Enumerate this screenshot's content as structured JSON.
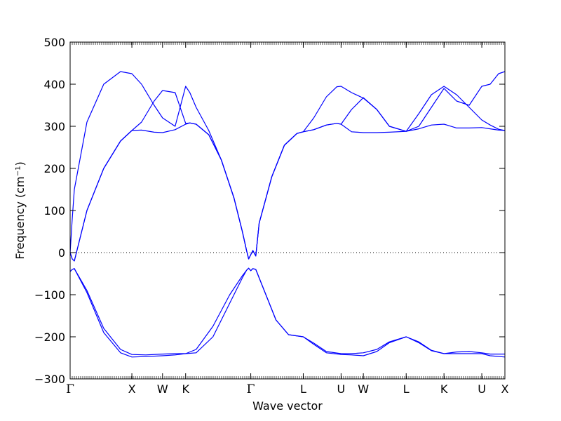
{
  "chart_data": {
    "type": "line",
    "title": "",
    "xlabel": "Wave vector",
    "ylabel": "Frequency (cm⁻¹)",
    "ylim": [
      -300,
      500
    ],
    "yticks": [
      -300,
      -200,
      -100,
      0,
      100,
      200,
      300,
      400,
      500
    ],
    "ytick_labels": [
      "−300",
      "−200",
      "−100",
      "0",
      "100",
      "200",
      "300",
      "400",
      "500"
    ],
    "xlim": [
      0,
      10.35
    ],
    "kpoints": [
      {
        "label": "Γ",
        "x": 0
      },
      {
        "label": "X",
        "x": 1.47
      },
      {
        "label": "W",
        "x": 2.2
      },
      {
        "label": "K",
        "x": 2.75
      },
      {
        "label": "Γ",
        "x": 4.3
      },
      {
        "label": "L",
        "x": 5.55
      },
      {
        "label": "U",
        "x": 6.45
      },
      {
        "label": "W",
        "x": 6.98
      },
      {
        "label": "L",
        "x": 8.0
      },
      {
        "label": "K",
        "x": 8.9
      },
      {
        "label": "U",
        "x": 9.8
      },
      {
        "label": "X",
        "x": 10.35
      }
    ],
    "zero_line": {
      "y": 0,
      "style": "dotted"
    },
    "line_color": "#0000ff",
    "series": [
      {
        "x": [
          0,
          0.05,
          0.1,
          0.4,
          0.8,
          1.2,
          1.47,
          1.7,
          2.0,
          2.2,
          2.5,
          2.75,
          2.85,
          3.0,
          3.3,
          3.6,
          3.9,
          4.1,
          4.2,
          4.25,
          4.3,
          4.35,
          4.42,
          4.5,
          4.8,
          5.1,
          5.4,
          5.55,
          5.8,
          6.1,
          6.35,
          6.45,
          6.7,
          6.98,
          7.3,
          7.6,
          8.0,
          8.3,
          8.6,
          8.9,
          9.2,
          9.5,
          9.8,
          10.0,
          10.2,
          10.35
        ],
        "values": [
          0,
          -15,
          -20,
          100,
          200,
          265,
          290,
          291,
          286,
          285,
          292,
          305,
          308,
          305,
          280,
          220,
          130,
          50,
          5,
          -15,
          -5,
          5,
          -8,
          70,
          180,
          255,
          283,
          287,
          292,
          303,
          307,
          305,
          287,
          285,
          285,
          286,
          288,
          294,
          303,
          305,
          296,
          296,
          297,
          294,
          291,
          290
        ]
      },
      {
        "x": [
          0,
          0.05,
          0.1,
          0.4,
          0.8,
          1.2,
          1.47,
          1.7,
          2.0,
          2.2,
          2.5,
          2.75,
          2.85,
          3.0,
          3.3,
          3.6,
          3.9,
          4.1,
          4.2,
          4.25,
          4.3,
          4.35,
          4.42,
          4.5,
          4.8,
          5.1,
          5.4,
          5.55,
          5.8,
          6.1,
          6.35,
          6.45,
          6.7,
          6.98,
          7.3,
          7.6,
          8.0,
          8.3,
          8.6,
          8.9,
          9.2,
          9.5,
          9.8,
          10.0,
          10.2,
          10.35
        ],
        "values": [
          0,
          -15,
          -20,
          100,
          200,
          265,
          290,
          310,
          360,
          385,
          380,
          307,
          308,
          305,
          280,
          220,
          130,
          50,
          5,
          -15,
          -5,
          5,
          -8,
          70,
          180,
          255,
          283,
          287,
          292,
          303,
          307,
          305,
          340,
          368,
          340,
          300,
          288,
          330,
          375,
          395,
          375,
          345,
          315,
          303,
          293,
          290
        ]
      },
      {
        "x": [
          0,
          0.05,
          0.1,
          0.4,
          0.8,
          1.2,
          1.47,
          1.7,
          2.0,
          2.2,
          2.5,
          2.75,
          2.85,
          3.0,
          3.3,
          3.6,
          3.9,
          4.1,
          4.2,
          4.25,
          4.3,
          4.35,
          4.42,
          4.5,
          4.8,
          5.1,
          5.4,
          5.55,
          5.8,
          6.1,
          6.35,
          6.45,
          6.7,
          6.98,
          7.3,
          7.6,
          8.0,
          8.3,
          8.6,
          8.9,
          9.2,
          9.5,
          9.8,
          10.0,
          10.2,
          10.35
        ],
        "values": [
          0,
          80,
          150,
          310,
          400,
          430,
          425,
          400,
          350,
          320,
          300,
          395,
          380,
          345,
          290,
          220,
          130,
          50,
          5,
          -15,
          -5,
          5,
          -8,
          70,
          180,
          255,
          283,
          287,
          320,
          370,
          394,
          395,
          380,
          367,
          340,
          300,
          288,
          300,
          345,
          390,
          360,
          350,
          395,
          400,
          425,
          430
        ]
      },
      {
        "x": [
          0,
          0.05,
          0.1,
          0.4,
          0.8,
          1.2,
          1.47,
          1.8,
          2.2,
          2.5,
          2.75,
          3.0,
          3.4,
          3.8,
          4.1,
          4.2,
          4.25,
          4.3,
          4.35,
          4.42,
          4.6,
          4.9,
          5.2,
          5.55,
          5.8,
          6.1,
          6.45,
          6.7,
          6.98,
          7.3,
          7.6,
          8.0,
          8.3,
          8.6,
          8.9,
          9.2,
          9.5,
          9.8,
          10.0,
          10.35
        ],
        "values": [
          -45,
          -40,
          -38,
          -90,
          -180,
          -230,
          -242,
          -243,
          -241,
          -240,
          -240,
          -230,
          -175,
          -100,
          -55,
          -42,
          -37,
          -43,
          -38,
          -40,
          -85,
          -160,
          -195,
          -200,
          -215,
          -235,
          -240,
          -240,
          -238,
          -230,
          -212,
          -200,
          -212,
          -232,
          -240,
          -236,
          -235,
          -238,
          -241,
          -241
        ]
      },
      {
        "x": [
          0,
          0.05,
          0.1,
          0.4,
          0.8,
          1.2,
          1.47,
          1.8,
          2.2,
          2.5,
          2.75,
          3.0,
          3.4,
          3.8,
          4.1,
          4.2,
          4.25,
          4.3,
          4.35,
          4.42,
          4.6,
          4.9,
          5.2,
          5.55,
          5.8,
          6.1,
          6.45,
          6.7,
          6.98,
          7.3,
          7.6,
          8.0,
          8.3,
          8.6,
          8.9,
          9.2,
          9.5,
          9.8,
          10.0,
          10.35
        ],
        "values": [
          -45,
          -40,
          -38,
          -95,
          -190,
          -238,
          -248,
          -247,
          -245,
          -243,
          -240,
          -238,
          -200,
          -120,
          -60,
          -42,
          -37,
          -43,
          -38,
          -40,
          -85,
          -160,
          -195,
          -200,
          -218,
          -238,
          -242,
          -243,
          -245,
          -235,
          -214,
          -200,
          -214,
          -233,
          -240,
          -240,
          -240,
          -240,
          -245,
          -248
        ]
      }
    ]
  }
}
